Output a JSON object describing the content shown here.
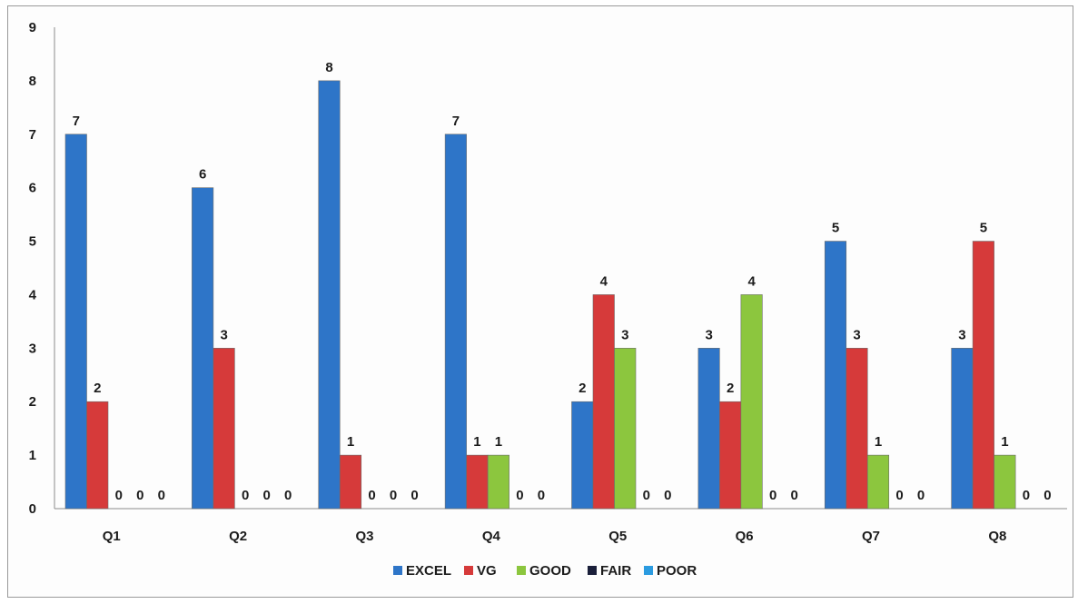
{
  "chart_data": {
    "type": "bar",
    "title": "",
    "xlabel": "",
    "ylabel": "",
    "categories": [
      "Q1",
      "Q2",
      "Q3",
      "Q4",
      "Q5",
      "Q6",
      "Q7",
      "Q8"
    ],
    "ylim": [
      0,
      9
    ],
    "yticks": [
      "0",
      "1",
      "2",
      "3",
      "4",
      "5",
      "6",
      "7",
      "8",
      "9"
    ],
    "grid": false,
    "legend_position": "bottom",
    "series": [
      {
        "name": "EXCEL",
        "color": "#2e75c8",
        "values": [
          7,
          6,
          8,
          7,
          2,
          3,
          5,
          3
        ]
      },
      {
        "name": "VG",
        "color": "#d63a3a",
        "values": [
          2,
          3,
          1,
          1,
          4,
          2,
          3,
          5
        ]
      },
      {
        "name": "GOOD",
        "color": "#8cc63e",
        "values": [
          0,
          0,
          0,
          1,
          3,
          4,
          1,
          1
        ]
      },
      {
        "name": "FAIR",
        "color": "#1a1f3a",
        "values": [
          0,
          0,
          0,
          0,
          0,
          0,
          0,
          0
        ]
      },
      {
        "name": "POOR",
        "color": "#2b9be0",
        "values": [
          0,
          0,
          0,
          0,
          0,
          0,
          0,
          0
        ]
      }
    ]
  }
}
